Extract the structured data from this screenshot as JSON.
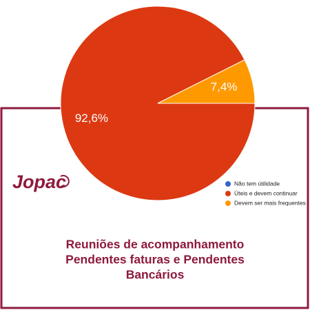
{
  "chart_data": {
    "type": "pie",
    "categories": [
      "Não tem útilidade",
      "Úteis e devem continuar",
      "Devem ser mais frequentes"
    ],
    "values": [
      0,
      92.6,
      7.4
    ],
    "value_labels": [
      null,
      "92,6%",
      "7,4%"
    ],
    "colors": [
      "#3366cc",
      "#dc3912",
      "#ff9900"
    ],
    "start_angle": 90,
    "legend": "right",
    "logo": "Jopac",
    "title_lines": [
      "Reuniões de acompanhamento",
      "Pendentes faturas e Pendentes",
      "Bancários"
    ]
  }
}
